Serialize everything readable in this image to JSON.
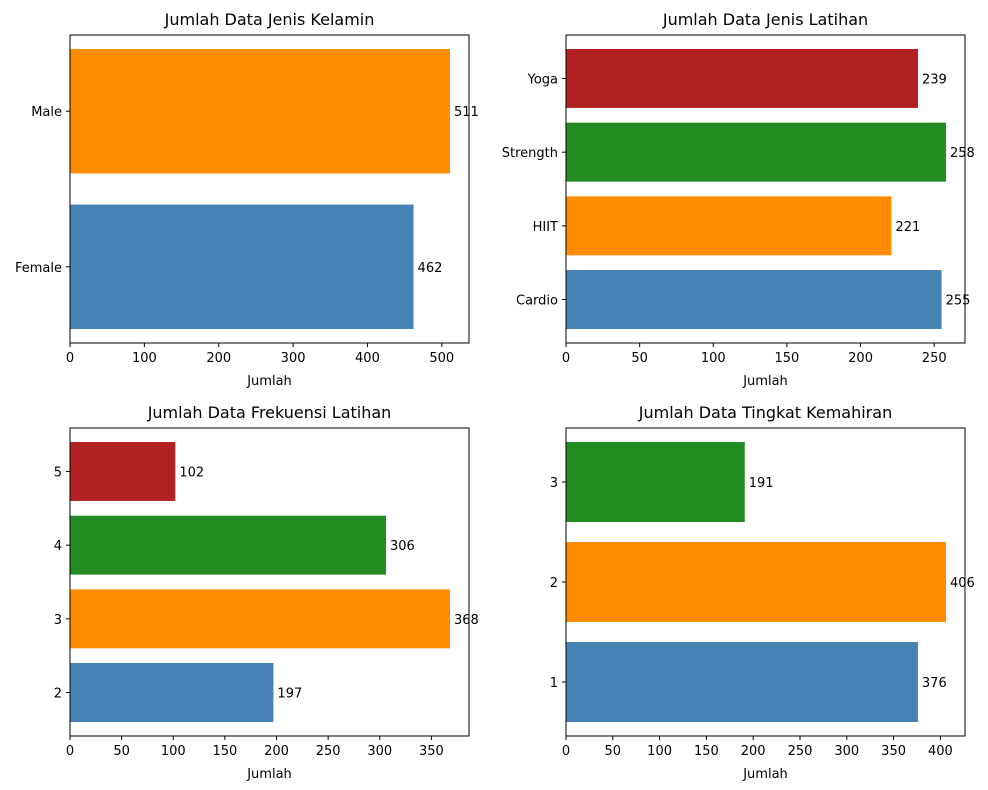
{
  "colors": {
    "blue": "#4682b4",
    "orange": "#ff8c00",
    "green": "#228b22",
    "red": "#b22222"
  },
  "chart_data": [
    {
      "type": "bar",
      "orientation": "horizontal",
      "title": "Jumlah Data Jenis Kelamin",
      "xlabel": "Jumlah",
      "ylabel": "",
      "categories": [
        "Female",
        "Male"
      ],
      "values": [
        462,
        511
      ],
      "colors": [
        "#4682b4",
        "#ff8c00"
      ],
      "xlim": [
        0,
        536.55
      ],
      "xticks": [
        0,
        100,
        200,
        300,
        400,
        500
      ],
      "grid": false
    },
    {
      "type": "bar",
      "orientation": "horizontal",
      "title": "Jumlah Data Jenis Latihan",
      "xlabel": "Jumlah",
      "ylabel": "",
      "categories": [
        "Cardio",
        "HIIT",
        "Strength",
        "Yoga"
      ],
      "values": [
        255,
        221,
        258,
        239
      ],
      "colors": [
        "#4682b4",
        "#ff8c00",
        "#228b22",
        "#b22222"
      ],
      "xlim": [
        0,
        270.9
      ],
      "xticks": [
        0,
        50,
        100,
        150,
        200,
        250
      ],
      "grid": false
    },
    {
      "type": "bar",
      "orientation": "horizontal",
      "title": "Jumlah Data Frekuensi Latihan",
      "xlabel": "Jumlah",
      "ylabel": "",
      "categories": [
        "2",
        "3",
        "4",
        "5"
      ],
      "values": [
        197,
        368,
        306,
        102
      ],
      "colors": [
        "#4682b4",
        "#ff8c00",
        "#228b22",
        "#b22222"
      ],
      "xlim": [
        0,
        386.4
      ],
      "xticks": [
        0,
        50,
        100,
        150,
        200,
        250,
        300,
        350
      ],
      "grid": false
    },
    {
      "type": "bar",
      "orientation": "horizontal",
      "title": "Jumlah Data Tingkat Kemahiran",
      "xlabel": "Jumlah",
      "ylabel": "",
      "categories": [
        "1",
        "2",
        "3"
      ],
      "values": [
        376,
        406,
        191
      ],
      "colors": [
        "#4682b4",
        "#ff8c00",
        "#228b22"
      ],
      "xlim": [
        0,
        426.3
      ],
      "xticks": [
        0,
        50,
        100,
        150,
        200,
        250,
        300,
        350,
        400
      ],
      "grid": false
    }
  ]
}
